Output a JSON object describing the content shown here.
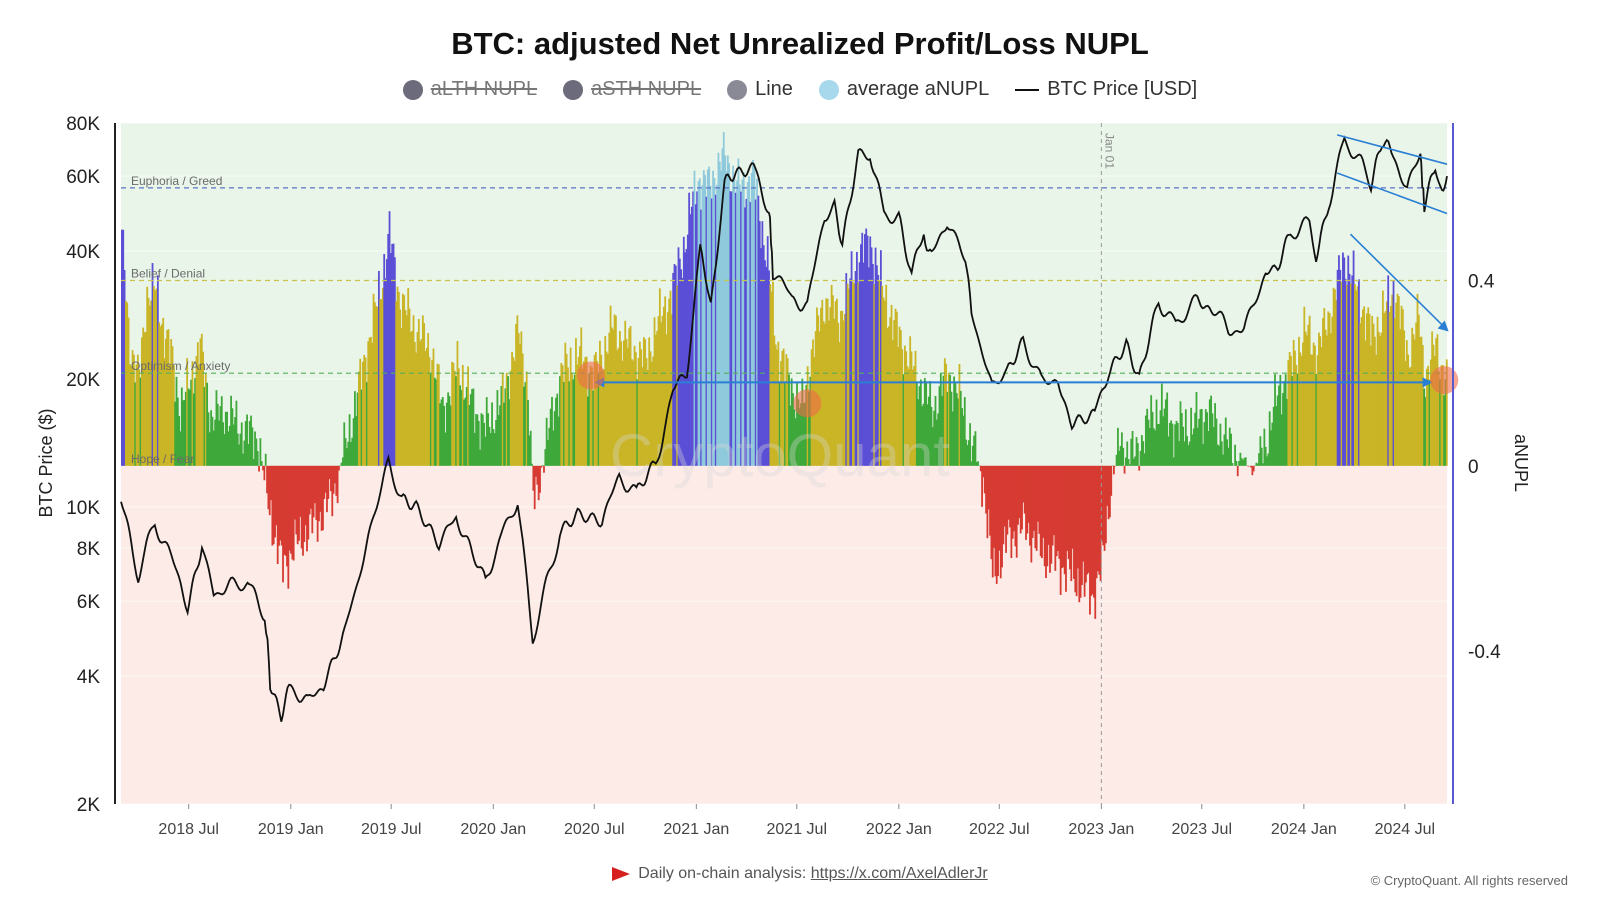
{
  "chart_data": {
    "type": "area",
    "title": "BTC: adjusted Net Unrealized Profit/Loss NUPL",
    "legend": [
      {
        "label": "aLTH NUPL",
        "color": "#6b6b7b",
        "hidden": true
      },
      {
        "label": "aSTH NUPL",
        "color": "#6b6b7b",
        "hidden": true
      },
      {
        "label": "Line",
        "color": "#8a8a96",
        "hidden": false
      },
      {
        "label": "average aNUPL",
        "color": "#a8d8ec",
        "hidden": false
      },
      {
        "label": "BTC Price [USD]",
        "color": "#111111",
        "hidden": false,
        "line": true
      }
    ],
    "left_axis": {
      "label": "BTC Price ($)",
      "scale": "log",
      "range": [
        2000,
        80000
      ],
      "ticks": [
        2000,
        4000,
        6000,
        8000,
        10000,
        20000,
        40000,
        60000,
        80000
      ],
      "tick_labels": [
        "2K",
        "4K",
        "6K",
        "8K",
        "10K",
        "20K",
        "40K",
        "60K",
        "80K"
      ]
    },
    "right_axis": {
      "label": "aNUPL",
      "scale": "linear",
      "range": [
        -0.73,
        0.74
      ],
      "ticks": [
        0.4,
        0,
        -0.4
      ],
      "tick_labels": [
        "0.4",
        "0",
        "-0.4"
      ]
    },
    "x_axis": {
      "range": [
        "2018-03-01",
        "2024-09-15"
      ],
      "ticks": [
        "2018-07-01",
        "2019-01-01",
        "2019-07-01",
        "2020-01-01",
        "2020-07-01",
        "2021-01-01",
        "2021-07-01",
        "2022-01-01",
        "2022-07-01",
        "2023-01-01",
        "2023-07-01",
        "2024-01-01",
        "2024-07-01"
      ],
      "tick_labels": [
        "2018 Jul",
        "2019 Jan",
        "2019 Jul",
        "2020 Jan",
        "2020 Jul",
        "2021 Jan",
        "2021 Jul",
        "2022 Jan",
        "2022 Jul",
        "2023 Jan",
        "2023 Jul",
        "2024 Jan",
        "2024 Jul"
      ]
    },
    "zones": [
      {
        "label": "Euphoria / Greed",
        "value": 0.6,
        "color": "#5a74c8"
      },
      {
        "label": "Belief / Denial",
        "value": 0.4,
        "color": "#c9c44e"
      },
      {
        "label": "Optimism / Anxiety",
        "value": 0.2,
        "color": "#54b05a"
      },
      {
        "label": "Hope / Fear",
        "value": 0.0,
        "color": "#888888"
      }
    ],
    "vertical_marker": {
      "date": "2023-01-01",
      "label": "Jan 01"
    },
    "zone_colors": {
      "capitulation": "#d63b32",
      "hope_fear": "#3fa83a",
      "optimism": "#c9b526",
      "belief": "#5b4fd6",
      "euphoria": "#8fc9dc"
    },
    "anupl_series": [
      [
        "2018-03-01",
        0.49
      ],
      [
        "2018-03-15",
        0.27
      ],
      [
        "2018-04-01",
        0.18
      ],
      [
        "2018-04-15",
        0.37
      ],
      [
        "2018-05-01",
        0.38
      ],
      [
        "2018-05-15",
        0.3
      ],
      [
        "2018-06-01",
        0.22
      ],
      [
        "2018-06-15",
        0.12
      ],
      [
        "2018-07-01",
        0.18
      ],
      [
        "2018-07-20",
        0.26
      ],
      [
        "2018-08-10",
        0.1
      ],
      [
        "2018-09-01",
        0.12
      ],
      [
        "2018-10-01",
        0.08
      ],
      [
        "2018-11-01",
        0.06
      ],
      [
        "2018-11-20",
        -0.08
      ],
      [
        "2018-12-15",
        -0.22
      ],
      [
        "2019-01-15",
        -0.16
      ],
      [
        "2019-02-15",
        -0.12
      ],
      [
        "2019-03-15",
        -0.07
      ],
      [
        "2019-04-10",
        0.05
      ],
      [
        "2019-05-01",
        0.16
      ],
      [
        "2019-05-20",
        0.27
      ],
      [
        "2019-06-10",
        0.38
      ],
      [
        "2019-06-26",
        0.5
      ],
      [
        "2019-07-15",
        0.36
      ],
      [
        "2019-08-10",
        0.3
      ],
      [
        "2019-09-10",
        0.25
      ],
      [
        "2019-10-01",
        0.12
      ],
      [
        "2019-10-28",
        0.22
      ],
      [
        "2019-11-20",
        0.14
      ],
      [
        "2019-12-15",
        0.08
      ],
      [
        "2020-01-15",
        0.14
      ],
      [
        "2020-02-14",
        0.29
      ],
      [
        "2020-03-01",
        0.18
      ],
      [
        "2020-03-13",
        -0.09
      ],
      [
        "2020-04-01",
        0.03
      ],
      [
        "2020-05-01",
        0.2
      ],
      [
        "2020-06-01",
        0.24
      ],
      [
        "2020-07-01",
        0.2
      ],
      [
        "2020-08-01",
        0.3
      ],
      [
        "2020-09-01",
        0.26
      ],
      [
        "2020-10-01",
        0.23
      ],
      [
        "2020-10-20",
        0.3
      ],
      [
        "2020-11-15",
        0.37
      ],
      [
        "2020-12-10",
        0.48
      ],
      [
        "2021-01-01",
        0.62
      ],
      [
        "2021-01-20",
        0.6
      ],
      [
        "2021-02-20",
        0.67
      ],
      [
        "2021-03-15",
        0.6
      ],
      [
        "2021-04-14",
        0.62
      ],
      [
        "2021-05-10",
        0.42
      ],
      [
        "2021-05-25",
        0.26
      ],
      [
        "2021-06-20",
        0.17
      ],
      [
        "2021-07-10",
        0.12
      ],
      [
        "2021-07-25",
        0.24
      ],
      [
        "2021-08-20",
        0.36
      ],
      [
        "2021-09-15",
        0.32
      ],
      [
        "2021-10-20",
        0.46
      ],
      [
        "2021-11-10",
        0.48
      ],
      [
        "2021-12-01",
        0.38
      ],
      [
        "2021-12-20",
        0.31
      ],
      [
        "2022-01-15",
        0.24
      ],
      [
        "2022-02-10",
        0.17
      ],
      [
        "2022-03-01",
        0.12
      ],
      [
        "2022-03-28",
        0.2
      ],
      [
        "2022-04-20",
        0.15
      ],
      [
        "2022-05-10",
        0.05
      ],
      [
        "2022-06-01",
        -0.03
      ],
      [
        "2022-06-18",
        -0.24
      ],
      [
        "2022-07-15",
        -0.16
      ],
      [
        "2022-08-15",
        -0.13
      ],
      [
        "2022-09-15",
        -0.19
      ],
      [
        "2022-10-15",
        -0.21
      ],
      [
        "2022-11-10",
        -0.24
      ],
      [
        "2022-12-15",
        -0.28
      ],
      [
        "2023-01-01",
        -0.22
      ],
      [
        "2023-01-15",
        -0.06
      ],
      [
        "2023-02-01",
        0.05
      ],
      [
        "2023-03-01",
        0.02
      ],
      [
        "2023-03-20",
        0.08
      ],
      [
        "2023-04-15",
        0.13
      ],
      [
        "2023-05-15",
        0.08
      ],
      [
        "2023-06-15",
        0.09
      ],
      [
        "2023-07-10",
        0.12
      ],
      [
        "2023-08-20",
        0.04
      ],
      [
        "2023-09-15",
        0.01
      ],
      [
        "2023-10-01",
        -0.01
      ],
      [
        "2023-10-25",
        0.06
      ],
      [
        "2023-11-15",
        0.16
      ],
      [
        "2023-12-10",
        0.22
      ],
      [
        "2024-01-01",
        0.29
      ],
      [
        "2024-01-25",
        0.25
      ],
      [
        "2024-02-15",
        0.33
      ],
      [
        "2024-03-13",
        0.45
      ],
      [
        "2024-04-10",
        0.36
      ],
      [
        "2024-05-01",
        0.28
      ],
      [
        "2024-05-25",
        0.33
      ],
      [
        "2024-06-10",
        0.39
      ],
      [
        "2024-07-05",
        0.24
      ],
      [
        "2024-07-25",
        0.32
      ],
      [
        "2024-08-05",
        0.19
      ],
      [
        "2024-08-25",
        0.26
      ],
      [
        "2024-09-10",
        0.19
      ]
    ],
    "btc_price_series": [
      [
        "2018-03-01",
        10300
      ],
      [
        "2018-04-01",
        6900
      ],
      [
        "2018-05-01",
        9200
      ],
      [
        "2018-06-01",
        7500
      ],
      [
        "2018-06-29",
        5900
      ],
      [
        "2018-07-25",
        8200
      ],
      [
        "2018-08-15",
        6300
      ],
      [
        "2018-09-15",
        6500
      ],
      [
        "2018-10-15",
        6600
      ],
      [
        "2018-11-15",
        5600
      ],
      [
        "2018-11-25",
        3900
      ],
      [
        "2018-12-15",
        3200
      ],
      [
        "2019-01-01",
        3800
      ],
      [
        "2019-02-01",
        3450
      ],
      [
        "2019-03-01",
        3800
      ],
      [
        "2019-04-05",
        4900
      ],
      [
        "2019-05-15",
        7900
      ],
      [
        "2019-06-26",
        12800
      ],
      [
        "2019-07-20",
        10500
      ],
      [
        "2019-08-15",
        10200
      ],
      [
        "2019-09-25",
        8300
      ],
      [
        "2019-10-26",
        9300
      ],
      [
        "2019-12-18",
        6600
      ],
      [
        "2020-01-15",
        8700
      ],
      [
        "2020-02-14",
        10300
      ],
      [
        "2020-03-12",
        4900
      ],
      [
        "2020-04-30",
        8700
      ],
      [
        "2020-06-01",
        9700
      ],
      [
        "2020-07-15",
        9200
      ],
      [
        "2020-08-15",
        11800
      ],
      [
        "2020-09-15",
        10800
      ],
      [
        "2020-10-20",
        12700
      ],
      [
        "2020-11-20",
        18500
      ],
      [
        "2020-12-15",
        21000
      ],
      [
        "2021-01-08",
        40000
      ],
      [
        "2021-01-27",
        30500
      ],
      [
        "2021-02-21",
        57000
      ],
      [
        "2021-03-13",
        61000
      ],
      [
        "2021-04-14",
        63500
      ],
      [
        "2021-05-12",
        50000
      ],
      [
        "2021-05-19",
        36000
      ],
      [
        "2021-06-22",
        31000
      ],
      [
        "2021-07-20",
        29800
      ],
      [
        "2021-08-20",
        48000
      ],
      [
        "2021-09-07",
        52000
      ],
      [
        "2021-09-21",
        41000
      ],
      [
        "2021-10-20",
        66000
      ],
      [
        "2021-11-10",
        68000
      ],
      [
        "2021-12-05",
        49000
      ],
      [
        "2022-01-01",
        47500
      ],
      [
        "2022-01-24",
        35000
      ],
      [
        "2022-02-15",
        44000
      ],
      [
        "2022-03-01",
        39000
      ],
      [
        "2022-03-29",
        47500
      ],
      [
        "2022-05-01",
        38000
      ],
      [
        "2022-05-12",
        29000
      ],
      [
        "2022-06-18",
        18900
      ],
      [
        "2022-07-15",
        21000
      ],
      [
        "2022-08-13",
        24500
      ],
      [
        "2022-09-15",
        20000
      ],
      [
        "2022-10-15",
        19200
      ],
      [
        "2022-11-09",
        16000
      ],
      [
        "2022-12-20",
        16800
      ],
      [
        "2023-01-14",
        21000
      ],
      [
        "2023-02-15",
        24600
      ],
      [
        "2023-03-10",
        20000
      ],
      [
        "2023-04-14",
        30500
      ],
      [
        "2023-05-15",
        27000
      ],
      [
        "2023-06-23",
        30500
      ],
      [
        "2023-07-15",
        30000
      ],
      [
        "2023-08-18",
        26000
      ],
      [
        "2023-09-15",
        26500
      ],
      [
        "2023-10-24",
        34500
      ],
      [
        "2023-11-15",
        37000
      ],
      [
        "2023-12-08",
        44000
      ],
      [
        "2024-01-11",
        46500
      ],
      [
        "2024-01-23",
        39500
      ],
      [
        "2024-02-15",
        52000
      ],
      [
        "2024-03-14",
        73000
      ],
      [
        "2024-04-13",
        64000
      ],
      [
        "2024-05-01",
        57500
      ],
      [
        "2024-05-21",
        71000
      ],
      [
        "2024-06-07",
        70000
      ],
      [
        "2024-07-05",
        55000
      ],
      [
        "2024-07-29",
        69000
      ],
      [
        "2024-08-05",
        50000
      ],
      [
        "2024-08-25",
        64000
      ],
      [
        "2024-09-06",
        54000
      ],
      [
        "2024-09-15",
        60000
      ]
    ],
    "annotations": {
      "horizontal_arrow": {
        "from": "2020-07-01",
        "to": "2024-08-20",
        "anupl": 0.18
      },
      "markers": [
        {
          "date": "2020-06-25",
          "anupl": 0.195
        },
        {
          "date": "2021-07-20",
          "anupl": 0.135
        },
        {
          "date": "2024-09-10",
          "anupl": 0.185
        }
      ],
      "price_channel": {
        "from": "2024-03-01",
        "to": "2024-09-15",
        "upper": [
          75000,
          64000
        ],
        "lower": [
          61000,
          49000
        ]
      },
      "down_arrow": {
        "from_date": "2024-03-25",
        "from_anupl": 0.5,
        "to_date": "2024-09-18",
        "to_anupl": 0.29
      }
    },
    "grid": true,
    "watermark": "CryptoQuant"
  },
  "footer": {
    "prefix": "Daily on-chain analysis:",
    "link_text": "https://x.com/AxelAdlerJr",
    "copyright": "© CryptoQuant. All rights reserved"
  }
}
